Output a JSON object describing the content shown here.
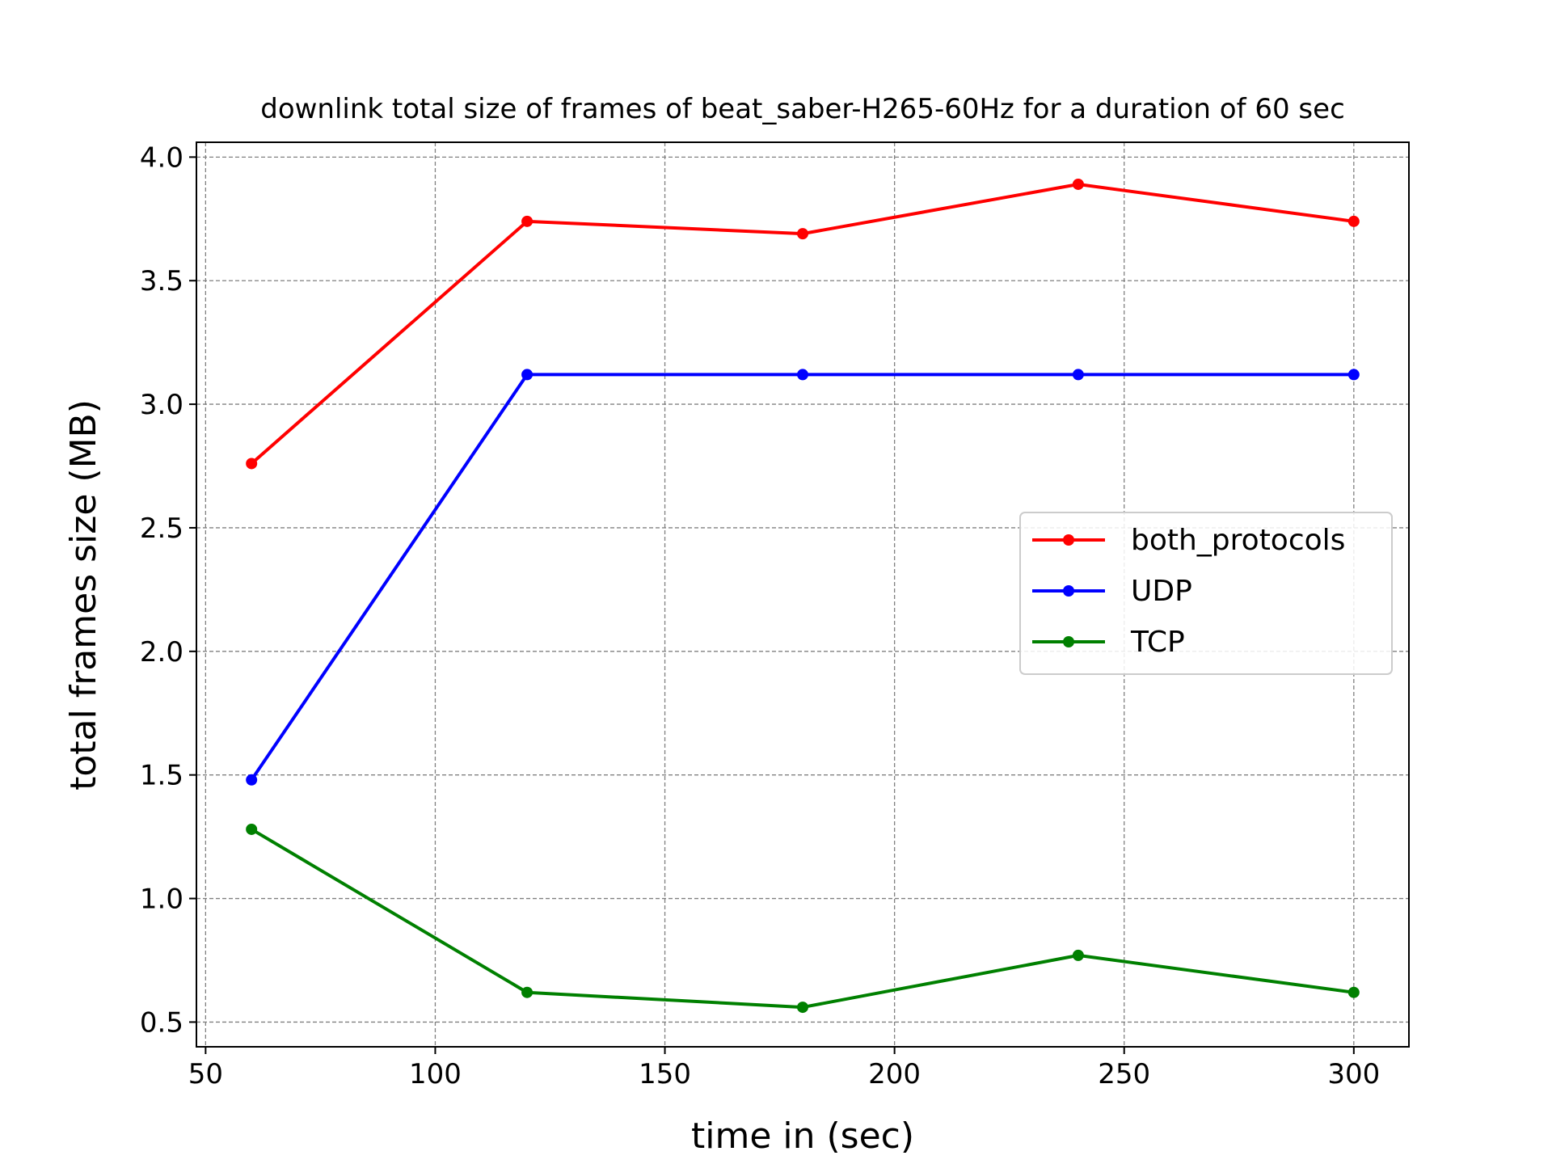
{
  "chart_data": {
    "type": "line",
    "title": "downlink total size of frames of beat_saber-H265-60Hz for a duration of 60 sec",
    "xlabel": "time in (sec)",
    "ylabel": "total frames size (MB)",
    "xlim": [
      48,
      312
    ],
    "ylim": [
      0.4,
      4.06
    ],
    "xticks": [
      50,
      100,
      150,
      200,
      250,
      300
    ],
    "yticks": [
      0.5,
      1.0,
      1.5,
      2.0,
      2.5,
      3.0,
      3.5,
      4.0
    ],
    "xtick_labels": [
      "50",
      "100",
      "150",
      "200",
      "250",
      "300"
    ],
    "ytick_labels": [
      "0.5",
      "1.0",
      "1.5",
      "2.0",
      "2.5",
      "3.0",
      "3.5",
      "4.0"
    ],
    "grid": true,
    "legend_position": "center-right",
    "x": [
      60,
      120,
      180,
      240,
      300
    ],
    "series": [
      {
        "name": "both_protocols",
        "color": "#ff0000",
        "values": [
          2.76,
          3.74,
          3.69,
          3.89,
          3.74
        ]
      },
      {
        "name": "UDP",
        "color": "#0000ff",
        "values": [
          1.48,
          3.12,
          3.12,
          3.12,
          3.12
        ]
      },
      {
        "name": "TCP",
        "color": "#008000",
        "values": [
          1.28,
          0.62,
          0.56,
          0.77,
          0.62
        ]
      }
    ]
  }
}
